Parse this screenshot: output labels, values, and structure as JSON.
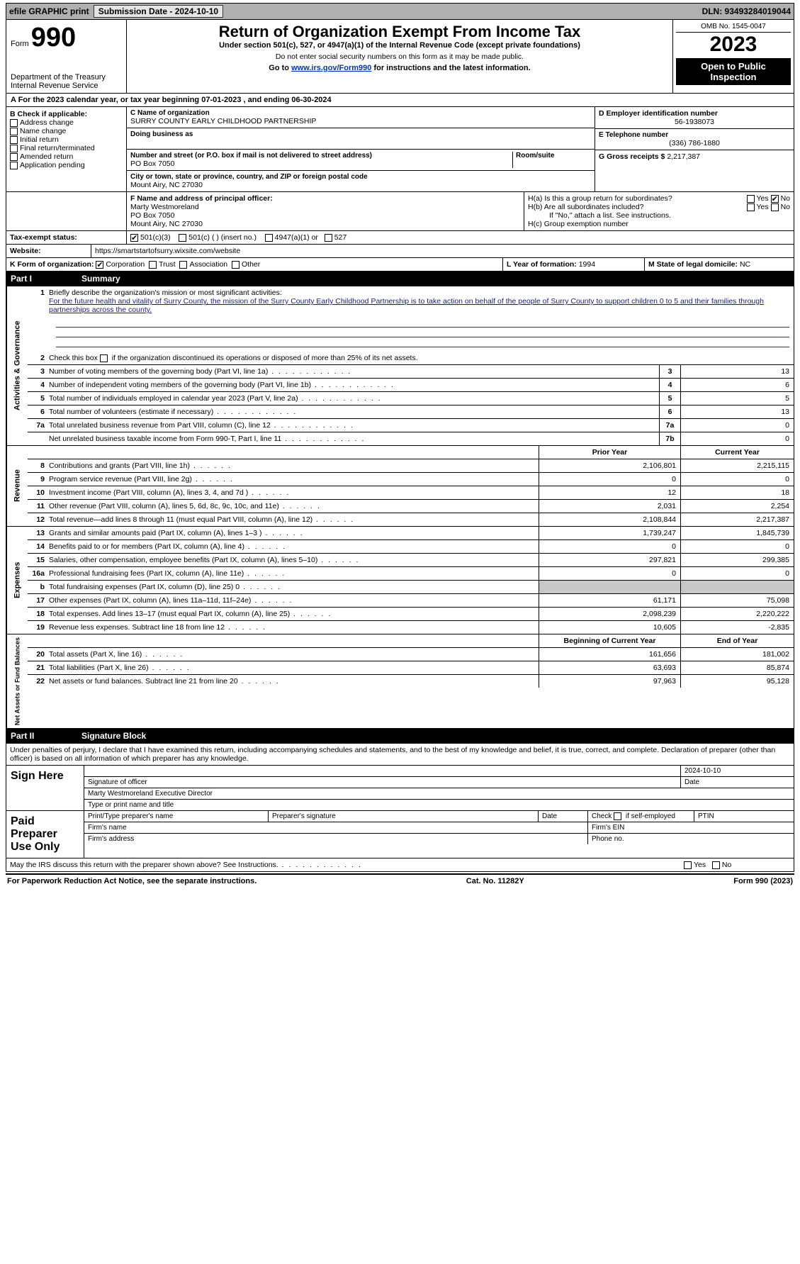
{
  "topbar": {
    "efile": "efile GRAPHIC print",
    "submission": "Submission Date - 2024-10-10",
    "dln": "DLN: 93493284019044"
  },
  "header": {
    "form_word": "Form",
    "form_number": "990",
    "dept": "Department of the Treasury",
    "irs": "Internal Revenue Service",
    "title": "Return of Organization Exempt From Income Tax",
    "subtitle": "Under section 501(c), 527, or 4947(a)(1) of the Internal Revenue Code (except private foundations)",
    "note1": "Do not enter social security numbers on this form as it may be made public.",
    "note2_pre": "Go to ",
    "note2_link": "www.irs.gov/Form990",
    "note2_post": " for instructions and the latest information.",
    "omb": "OMB No. 1545-0047",
    "year": "2023",
    "open": "Open to Public Inspection"
  },
  "sectionA": {
    "text_pre": "A For the 2023 calendar year, or tax year beginning ",
    "begin": "07-01-2023",
    "mid": " , and ending ",
    "end": "06-30-2024"
  },
  "sectionB": {
    "label": "B Check if applicable:",
    "items": [
      "Address change",
      "Name change",
      "Initial return",
      "Final return/terminated",
      "Amended return",
      "Application pending"
    ]
  },
  "sectionC": {
    "name_label": "C Name of organization",
    "name": "SURRY COUNTY EARLY CHILDHOOD PARTNERSHIP",
    "dba_label": "Doing business as",
    "street_label": "Number and street (or P.O. box if mail is not delivered to street address)",
    "room_label": "Room/suite",
    "street": "PO Box 7050",
    "city_label": "City or town, state or province, country, and ZIP or foreign postal code",
    "city": "Mount Airy, NC  27030"
  },
  "sectionD": {
    "label": "D Employer identification number",
    "value": "56-1938073"
  },
  "sectionE": {
    "label": "E Telephone number",
    "value": "(336) 786-1880"
  },
  "sectionG": {
    "label": "G Gross receipts $",
    "value": "2,217,387"
  },
  "sectionF": {
    "label": "F  Name and address of principal officer:",
    "l1": "Marty Westmoreland",
    "l2": "PO Box 7050",
    "l3": "Mount Airy, NC  27030"
  },
  "sectionH": {
    "a_label": "H(a)  Is this a group return for subordinates?",
    "b_label": "H(b)  Are all subordinates included?",
    "b_note": "If \"No,\" attach a list. See instructions.",
    "c_label": "H(c)  Group exemption number",
    "yes": "Yes",
    "no": "No"
  },
  "sectionI": {
    "label": "Tax-exempt status:",
    "o1": "501(c)(3)",
    "o2": "501(c) (  ) (insert no.)",
    "o3": "4947(a)(1) or",
    "o4": "527"
  },
  "sectionJ": {
    "label": "Website:",
    "value": "https://smartstartofsurry.wixsite.com/website"
  },
  "sectionK": {
    "label": "K Form of organization:",
    "o1": "Corporation",
    "o2": "Trust",
    "o3": "Association",
    "o4": "Other"
  },
  "sectionL": {
    "label": "L Year of formation:",
    "value": "1994"
  },
  "sectionM": {
    "label": "M State of legal domicile:",
    "value": "NC"
  },
  "part1": {
    "num": "Part I",
    "title": "Summary"
  },
  "mission": {
    "prompt": "Briefly describe the organization's mission or most significant activities:",
    "text": "For the future health and vitality of Surry County, the mission of the Surry County Early Childhood Partnership is to take action on behalf of the people of Surry County to support children 0 to 5 and their families through partnerships across the county."
  },
  "line2": "Check this box    if the organization discontinued its operations or disposed of more than 25% of its net assets.",
  "governance": {
    "side": "Activities & Governance",
    "rows": [
      {
        "n": "3",
        "t": "Number of voting members of the governing body (Part VI, line 1a)",
        "box": "3",
        "v": "13"
      },
      {
        "n": "4",
        "t": "Number of independent voting members of the governing body (Part VI, line 1b)",
        "box": "4",
        "v": "6"
      },
      {
        "n": "5",
        "t": "Total number of individuals employed in calendar year 2023 (Part V, line 2a)",
        "box": "5",
        "v": "5"
      },
      {
        "n": "6",
        "t": "Total number of volunteers (estimate if necessary)",
        "box": "6",
        "v": "13"
      },
      {
        "n": "7a",
        "t": "Total unrelated business revenue from Part VIII, column (C), line 12",
        "box": "7a",
        "v": "0"
      },
      {
        "n": "",
        "t": "Net unrelated business taxable income from Form 990-T, Part I, line 11",
        "box": "7b",
        "v": "0"
      }
    ]
  },
  "twoColHdr": {
    "prior": "Prior Year",
    "current": "Current Year"
  },
  "revenue": {
    "side": "Revenue",
    "rows": [
      {
        "n": "8",
        "t": "Contributions and grants (Part VIII, line 1h)",
        "p": "2,106,801",
        "c": "2,215,115"
      },
      {
        "n": "9",
        "t": "Program service revenue (Part VIII, line 2g)",
        "p": "0",
        "c": "0"
      },
      {
        "n": "10",
        "t": "Investment income (Part VIII, column (A), lines 3, 4, and 7d )",
        "p": "12",
        "c": "18"
      },
      {
        "n": "11",
        "t": "Other revenue (Part VIII, column (A), lines 5, 6d, 8c, 9c, 10c, and 11e)",
        "p": "2,031",
        "c": "2,254"
      },
      {
        "n": "12",
        "t": "Total revenue—add lines 8 through 11 (must equal Part VIII, column (A), line 12)",
        "p": "2,108,844",
        "c": "2,217,387"
      }
    ]
  },
  "expenses": {
    "side": "Expenses",
    "rows": [
      {
        "n": "13",
        "t": "Grants and similar amounts paid (Part IX, column (A), lines 1–3 )",
        "p": "1,739,247",
        "c": "1,845,739"
      },
      {
        "n": "14",
        "t": "Benefits paid to or for members (Part IX, column (A), line 4)",
        "p": "0",
        "c": "0"
      },
      {
        "n": "15",
        "t": "Salaries, other compensation, employee benefits (Part IX, column (A), lines 5–10)",
        "p": "297,821",
        "c": "299,385"
      },
      {
        "n": "16a",
        "t": "Professional fundraising fees (Part IX, column (A), line 11e)",
        "p": "0",
        "c": "0"
      },
      {
        "n": "b",
        "t": "Total fundraising expenses (Part IX, column (D), line 25) 0",
        "p": "__grey__",
        "c": "__grey__"
      },
      {
        "n": "17",
        "t": "Other expenses (Part IX, column (A), lines 11a–11d, 11f–24e)",
        "p": "61,171",
        "c": "75,098"
      },
      {
        "n": "18",
        "t": "Total expenses. Add lines 13–17 (must equal Part IX, column (A), line 25)",
        "p": "2,098,239",
        "c": "2,220,222"
      },
      {
        "n": "19",
        "t": "Revenue less expenses. Subtract line 18 from line 12",
        "p": "10,605",
        "c": "-2,835"
      }
    ]
  },
  "netHdr": {
    "begin": "Beginning of Current Year",
    "end": "End of Year"
  },
  "netassets": {
    "side": "Net Assets or Fund Balances",
    "rows": [
      {
        "n": "20",
        "t": "Total assets (Part X, line 16)",
        "p": "161,656",
        "c": "181,002"
      },
      {
        "n": "21",
        "t": "Total liabilities (Part X, line 26)",
        "p": "63,693",
        "c": "85,874"
      },
      {
        "n": "22",
        "t": "Net assets or fund balances. Subtract line 21 from line 20",
        "p": "97,963",
        "c": "95,128"
      }
    ]
  },
  "part2": {
    "num": "Part II",
    "title": "Signature Block"
  },
  "perjury": "Under penalties of perjury, I declare that I have examined this return, including accompanying schedules and statements, and to the best of my knowledge and belief, it is true, correct, and complete. Declaration of preparer (other than officer) is based on all information of which preparer has any knowledge.",
  "sign": {
    "here": "Sign Here",
    "sig_officer": "Signature of officer",
    "date": "Date",
    "sig_date": "2024-10-10",
    "name_title": "Marty Westmoreland  Executive Director",
    "type_label": "Type or print name and title"
  },
  "paid": {
    "label": "Paid Preparer Use Only",
    "name": "Print/Type preparer's name",
    "sig": "Preparer's signature",
    "date": "Date",
    "check": "Check        if self-employed",
    "ptin": "PTIN",
    "firm": "Firm's name",
    "ein": "Firm's EIN",
    "addr": "Firm's address",
    "phone": "Phone no."
  },
  "discuss": {
    "text": "May the IRS discuss this return with the preparer shown above? See Instructions.",
    "yes": "Yes",
    "no": "No"
  },
  "footer": {
    "left": "For Paperwork Reduction Act Notice, see the separate instructions.",
    "mid": "Cat. No. 11282Y",
    "right": "Form 990 (2023)"
  }
}
